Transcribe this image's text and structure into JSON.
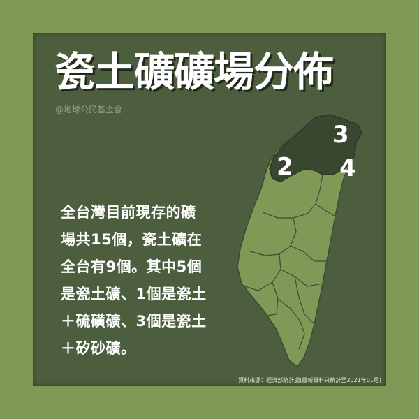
{
  "title": "瓷土礦礦場分佈",
  "credit": "@地球公民基金會",
  "paragraph": {
    "lines": [
      "全台灣目前現存的礦",
      "場共15個，瓷土礦在",
      "全台有9個。其中5個",
      "是瓷土礦、1個是瓷土",
      "＋硫磺礦、3個是瓷土",
      "＋矽砂礦。"
    ]
  },
  "map": {
    "labels": [
      "3",
      "2",
      "4"
    ],
    "counts": {
      "north_region": 3,
      "west_region": 2,
      "northeast_region": 4
    },
    "colors": {
      "land": "#7f9a57",
      "highlight": "#394731",
      "border": "#3d4b34"
    }
  },
  "source": "資料來源：經濟部統計處(最新資料只統計至2021年01月)",
  "colors": {
    "background": "#7f9a57",
    "card": "#4d5e3e",
    "text": "#ffffff"
  }
}
